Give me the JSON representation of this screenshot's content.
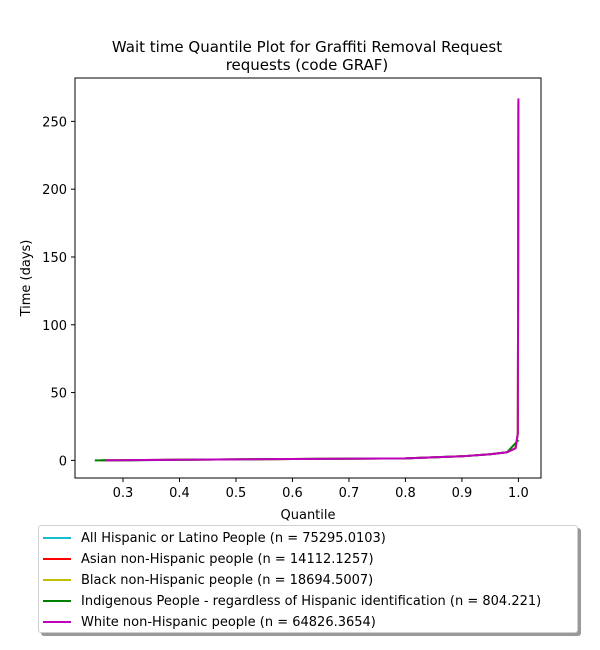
{
  "chart_data": {
    "type": "line",
    "title_line1": "Wait time Quantile Plot for Graffiti Removal Request",
    "title_line2": "requests (code GRAF)",
    "xlabel": "Quantile",
    "ylabel": "Time (days)",
    "xlim": [
      0.215,
      1.04
    ],
    "ylim": [
      -13,
      282
    ],
    "xticks": [
      "0.3",
      "0.4",
      "0.5",
      "0.6",
      "0.7",
      "0.8",
      "0.9",
      "1.0"
    ],
    "yticks": [
      "0",
      "50",
      "100",
      "150",
      "200",
      "250"
    ],
    "legend_position": "below",
    "series": [
      {
        "name": "All Hispanic or Latino People (n = 75295.0103)",
        "color": "#17becf",
        "x": [
          0.26,
          0.4,
          0.6,
          0.8,
          0.9,
          0.95,
          0.98,
          0.995,
          0.999,
          1.0
        ],
        "y": [
          0,
          0.5,
          1,
          1.5,
          3,
          4.5,
          6,
          9,
          20,
          262
        ]
      },
      {
        "name": "Asian non-Hispanic people (n = 14112.1257)",
        "color": "#ff0000",
        "x": [
          0.26,
          0.4,
          0.6,
          0.8,
          0.9,
          0.95,
          0.98,
          0.995,
          0.999,
          1.0
        ],
        "y": [
          0,
          0.5,
          1,
          1.5,
          3,
          4.5,
          6,
          9,
          20,
          264
        ]
      },
      {
        "name": "Black non-Hispanic people (n = 18694.5007)",
        "color": "#bfbf00",
        "x": [
          0.26,
          0.4,
          0.6,
          0.8,
          0.9,
          0.95,
          0.98,
          0.995,
          0.999,
          1.0
        ],
        "y": [
          0,
          0.5,
          1,
          1.5,
          3,
          4.5,
          6,
          9,
          20,
          265
        ]
      },
      {
        "name": "Indigenous People - regardless of Hispanic identification (n = 804.221)",
        "color": "#008000",
        "x": [
          0.25,
          0.3,
          0.4,
          0.6,
          0.8,
          0.9,
          0.95,
          0.98,
          1.0
        ],
        "y": [
          0,
          0,
          0.5,
          1,
          1.5,
          3,
          4.5,
          6,
          15
        ]
      },
      {
        "name": "White non-Hispanic people (n = 64826.3654)",
        "color": "#bf00bf",
        "x": [
          0.27,
          0.4,
          0.6,
          0.8,
          0.9,
          0.95,
          0.98,
          0.995,
          0.999,
          1.0
        ],
        "y": [
          0,
          0.5,
          1,
          1.5,
          3,
          4.5,
          6,
          9,
          20,
          267
        ]
      }
    ]
  }
}
